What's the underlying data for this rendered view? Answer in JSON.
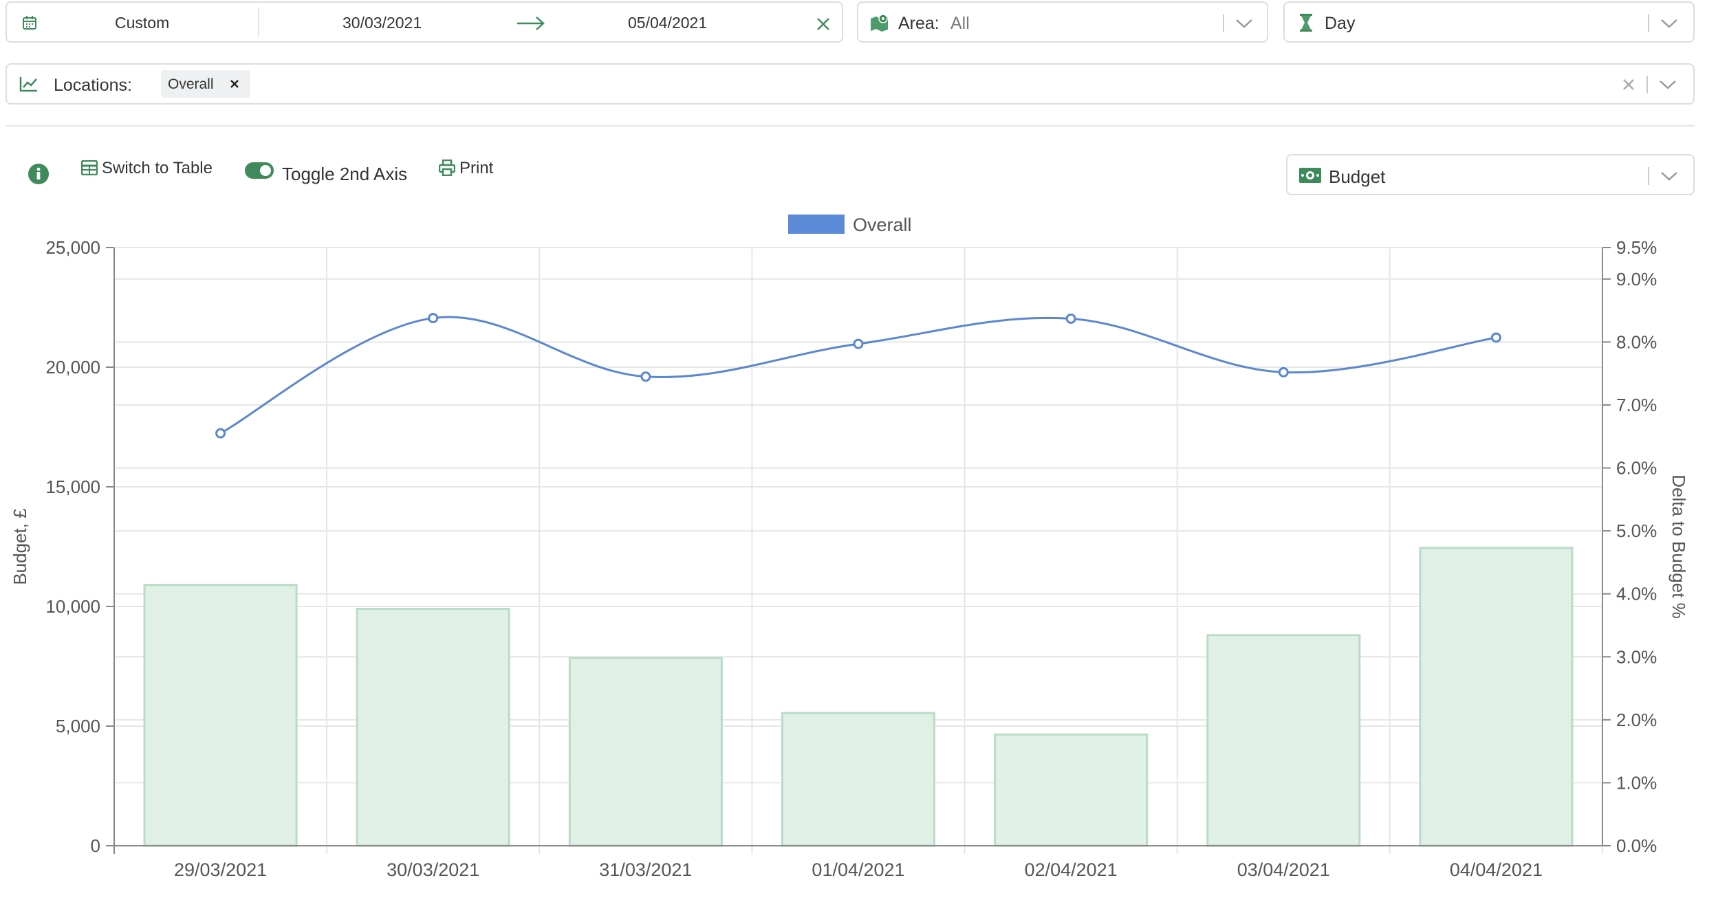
{
  "date_filter": {
    "preset": "Custom",
    "start": "30/03/2021",
    "end": "05/04/2021",
    "icon": "calendar-icon"
  },
  "area_filter": {
    "label": "Area:",
    "value": "All",
    "icon": "map-icon"
  },
  "period_filter": {
    "value": "Day",
    "icon": "hourglass-icon"
  },
  "locations_filter": {
    "label": "Locations:",
    "chips": [
      "Overall"
    ],
    "icon": "line-chart-icon"
  },
  "toolbar": {
    "switch_table": "Switch to Table",
    "toggle_axis": "Toggle 2nd Axis",
    "print": "Print",
    "metric": "Budget"
  },
  "colors": {
    "accent_green": "#3e8a5a",
    "bar_fill": "#e1f0e7",
    "bar_stroke": "#b9dcc6",
    "line_blue": "#5a87cf",
    "legend_blue": "#5b8bd6"
  },
  "chart_data": {
    "type": "bar",
    "legend": [
      "Overall"
    ],
    "legend_position": "top-center",
    "grid": true,
    "categories": [
      "29/03/2021",
      "30/03/2021",
      "31/03/2021",
      "01/04/2021",
      "02/04/2021",
      "03/04/2021",
      "04/04/2021"
    ],
    "ylabel": "Budget, £",
    "y2label": "Delta to Budget %",
    "ylim": [
      0,
      25000
    ],
    "y_ticks": [
      "0",
      "5,000",
      "10,000",
      "15,000",
      "20,000",
      "25,000"
    ],
    "y2lim": [
      0.0,
      9.5
    ],
    "y2_ticks": [
      "0.0%",
      "1.0%",
      "2.0%",
      "3.0%",
      "4.0%",
      "5.0%",
      "6.0%",
      "7.0%",
      "8.0%",
      "9.0%",
      "9.5%"
    ],
    "series": [
      {
        "name": "Overall",
        "type": "bar",
        "axis": "left",
        "values": [
          10900,
          9900,
          7850,
          5550,
          4650,
          8800,
          12450
        ]
      },
      {
        "name": "Overall",
        "type": "line",
        "axis": "right",
        "values": [
          6.55,
          8.38,
          7.45,
          7.97,
          8.37,
          7.52,
          8.07
        ]
      }
    ]
  }
}
